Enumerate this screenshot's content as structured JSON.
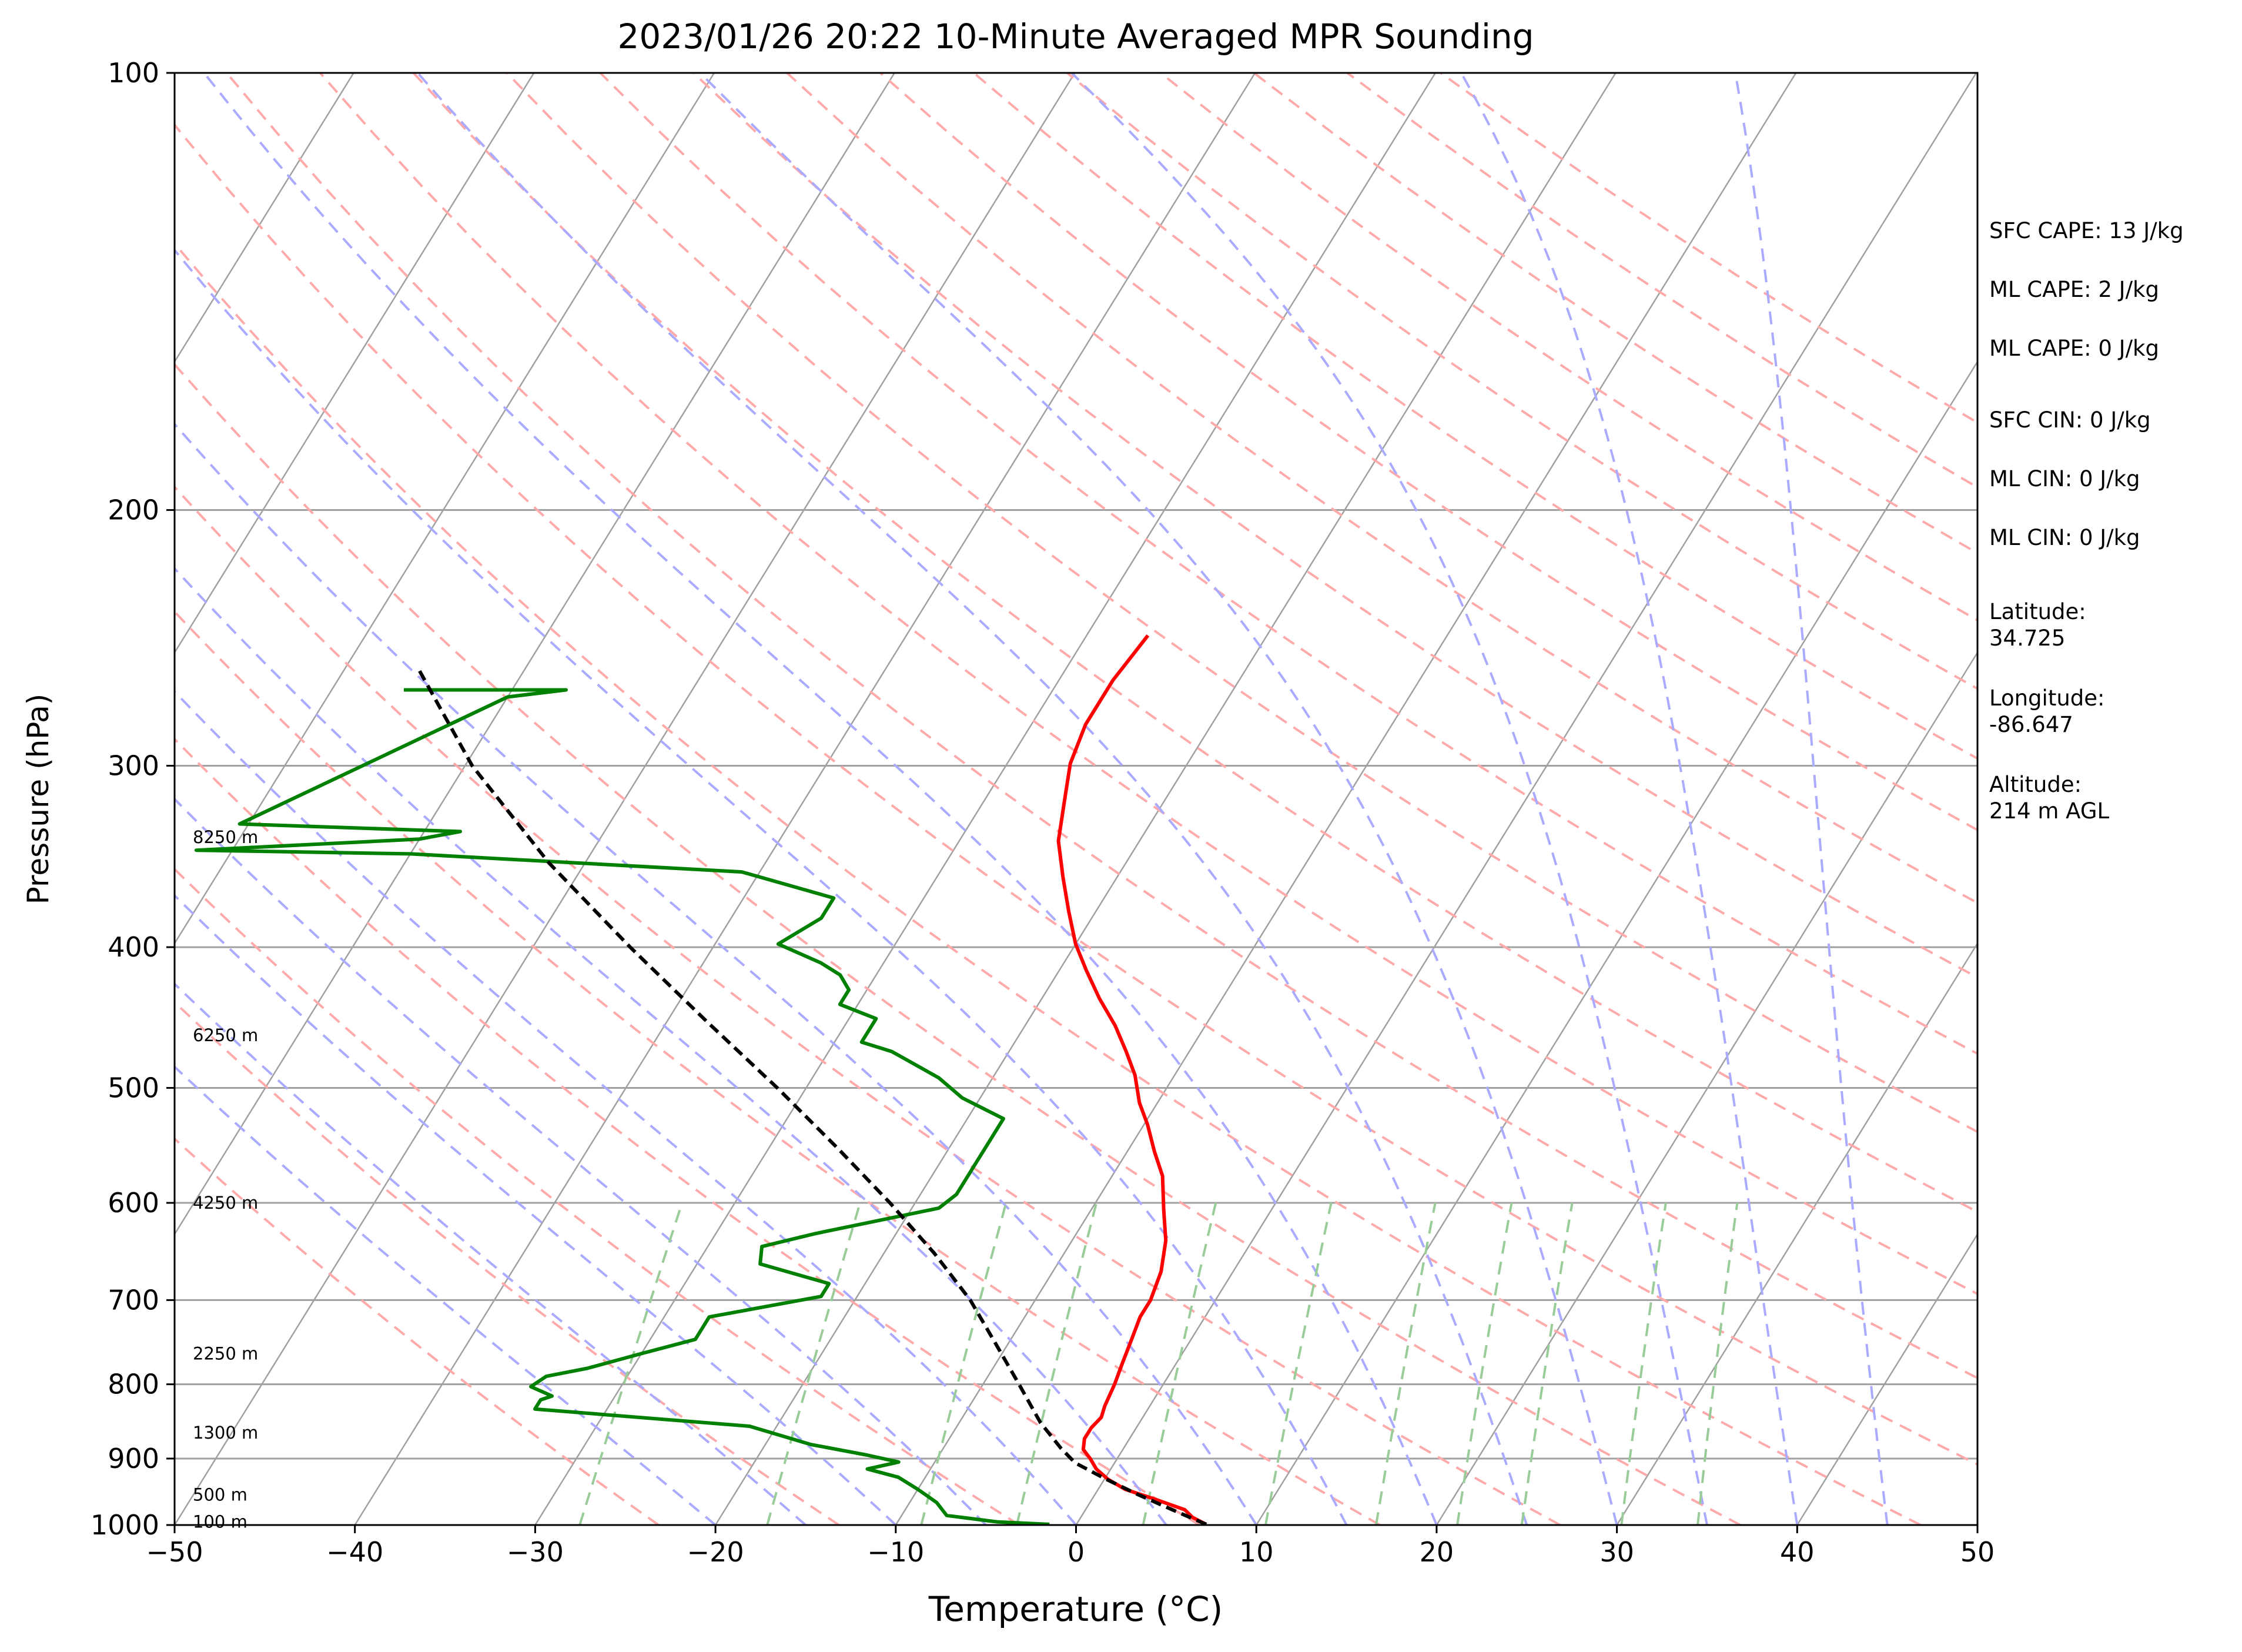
{
  "chart_data": {
    "type": "line",
    "title": "2023/01/26 20:22 10-Minute Averaged MPR Sounding",
    "xlabel": "Temperature (°C)",
    "ylabel": "Pressure (hPa)",
    "xlim": [
      -50,
      50
    ],
    "ylim": [
      1000,
      100
    ],
    "y_scale": "log",
    "skew": true,
    "grid": true,
    "x_ticks": [
      "−50",
      "−40",
      "−30",
      "−20",
      "−10",
      "0",
      "10",
      "20",
      "30",
      "40",
      "50"
    ],
    "x_tick_values": [
      -50,
      -40,
      -30,
      -20,
      -10,
      0,
      10,
      20,
      30,
      40,
      50
    ],
    "y_ticks": [
      "100",
      "200",
      "300",
      "400",
      "500",
      "600",
      "700",
      "800",
      "900",
      "1000"
    ],
    "y_tick_values": [
      100,
      200,
      300,
      400,
      500,
      600,
      700,
      800,
      900,
      1000
    ],
    "height_labels": [
      {
        "p": 995,
        "text": "100 m"
      },
      {
        "p": 953,
        "text": "500 m"
      },
      {
        "p": 864,
        "text": "1300 m"
      },
      {
        "p": 762,
        "text": "2250 m"
      },
      {
        "p": 600,
        "text": "4250 m"
      },
      {
        "p": 460,
        "text": "6250 m"
      },
      {
        "p": 336,
        "text": "8250 m"
      }
    ],
    "series": [
      {
        "key": "temperature",
        "color": "#ff0000",
        "points": [
          [
            7.2,
            999
          ],
          [
            6.2,
            988
          ],
          [
            5.5,
            976
          ],
          [
            3.5,
            960
          ],
          [
            1.5,
            945
          ],
          [
            0.2,
            930
          ],
          [
            -0.8,
            915
          ],
          [
            -1.5,
            900
          ],
          [
            -2.2,
            887
          ],
          [
            -2.5,
            872
          ],
          [
            -2.5,
            857
          ],
          [
            -2.3,
            843
          ],
          [
            -2.5,
            828
          ],
          [
            -2.7,
            800
          ],
          [
            -3.0,
            773
          ],
          [
            -3.3,
            745
          ],
          [
            -3.6,
            719
          ],
          [
            -3.6,
            700
          ],
          [
            -4.0,
            669
          ],
          [
            -4.8,
            637
          ],
          [
            -6.0,
            606
          ],
          [
            -7.2,
            575
          ],
          [
            -8.5,
            553
          ],
          [
            -9.8,
            530
          ],
          [
            -11.0,
            512
          ],
          [
            -12.2,
            490
          ],
          [
            -13.5,
            472
          ],
          [
            -15.0,
            453
          ],
          [
            -16.8,
            434
          ],
          [
            -18.5,
            415
          ],
          [
            -20.0,
            398
          ],
          [
            -21.5,
            378
          ],
          [
            -23.0,
            358
          ],
          [
            -24.5,
            338
          ],
          [
            -25.5,
            318
          ],
          [
            -26.5,
            299
          ],
          [
            -27.0,
            281
          ],
          [
            -27.0,
            262
          ],
          [
            -26.6,
            244
          ]
        ]
      },
      {
        "key": "dewpoint",
        "color": "#008000",
        "points": [
          [
            -1.5,
            999
          ],
          [
            -4.5,
            995
          ],
          [
            -7.5,
            985
          ],
          [
            -8.0,
            975
          ],
          [
            -8.5,
            965
          ],
          [
            -10.0,
            945
          ],
          [
            -11.5,
            927
          ],
          [
            -13.5,
            915
          ],
          [
            -12.0,
            905
          ],
          [
            -14.0,
            895
          ],
          [
            -17.5,
            880
          ],
          [
            -21.5,
            855
          ],
          [
            -34.0,
            832
          ],
          [
            -34.0,
            820
          ],
          [
            -33.5,
            815
          ],
          [
            -35.0,
            803
          ],
          [
            -34.5,
            790
          ],
          [
            -32.5,
            780
          ],
          [
            -30.0,
            762
          ],
          [
            -27.5,
            745
          ],
          [
            -27.5,
            719
          ],
          [
            -22.0,
            696
          ],
          [
            -22.0,
            682
          ],
          [
            -26.5,
            661
          ],
          [
            -27.0,
            643
          ],
          [
            -24.5,
            630
          ],
          [
            -18.5,
            605
          ],
          [
            -18.0,
            592
          ],
          [
            -18.0,
            568
          ],
          [
            -18.0,
            548
          ],
          [
            -18.0,
            525
          ],
          [
            -21.0,
            508
          ],
          [
            -23.0,
            492
          ],
          [
            -26.5,
            472
          ],
          [
            -28.5,
            465
          ],
          [
            -28.5,
            448
          ],
          [
            -31.0,
            438
          ],
          [
            -31.0,
            428
          ],
          [
            -32.0,
            418
          ],
          [
            -33.5,
            410
          ],
          [
            -36.5,
            398
          ],
          [
            -35.0,
            382
          ],
          [
            -35.0,
            370
          ],
          [
            -41.0,
            355
          ],
          [
            -60.0,
            345
          ],
          [
            -72.0,
            343
          ],
          [
            -60.0,
            337
          ],
          [
            -58.0,
            333
          ],
          [
            -70.5,
            329
          ],
          [
            -60.0,
            269
          ],
          [
            -57.0,
            266
          ],
          [
            -66.0,
            266
          ]
        ]
      },
      {
        "key": "parcel",
        "color": "#000000",
        "dashed": true,
        "points": [
          [
            7.2,
            999
          ],
          [
            4.8,
            976
          ],
          [
            2.3,
            952
          ],
          [
            0.0,
            929
          ],
          [
            -2.2,
            906
          ],
          [
            -3.5,
            885
          ],
          [
            -5.5,
            850
          ],
          [
            -8.0,
            800
          ],
          [
            -10.7,
            750
          ],
          [
            -13.6,
            700
          ],
          [
            -17.2,
            650
          ],
          [
            -21.4,
            600
          ],
          [
            -26.2,
            550
          ],
          [
            -31.6,
            500
          ],
          [
            -37.8,
            450
          ],
          [
            -44.6,
            400
          ],
          [
            -52.0,
            350
          ],
          [
            -59.6,
            300
          ],
          [
            -65.8,
            258
          ]
        ]
      }
    ]
  },
  "side_info": [
    {
      "key": "sfc_cape",
      "text": "SFC CAPE: 13 J/kg"
    },
    {
      "key": "ml_cape_1",
      "text": "ML CAPE: 2 J/kg"
    },
    {
      "key": "ml_cape_2",
      "text": "ML CAPE: 0 J/kg"
    },
    {
      "key": "sfc_cin",
      "text": "SFC CIN: 0 J/kg"
    },
    {
      "key": "ml_cin_1",
      "text": "ML CIN: 0 J/kg"
    },
    {
      "key": "ml_cin_2",
      "text": "ML CIN: 0 J/kg"
    },
    {
      "key": "lat_label",
      "text": "Latitude:"
    },
    {
      "key": "lat_value",
      "text": "34.725"
    },
    {
      "key": "lon_label",
      "text": "Longitude:"
    },
    {
      "key": "lon_value",
      "text": "-86.647"
    },
    {
      "key": "alt_label",
      "text": "Altitude:"
    },
    {
      "key": "alt_value",
      "text": "214 m AGL"
    }
  ],
  "colors": {
    "isotherm": "#a0a0a0",
    "dry_adiabat": "#ffaaaa",
    "moist_adiabat": "#aaaaff",
    "mixing_ratio": "#99cc99",
    "temperature": "#ff0000",
    "dewpoint": "#008000",
    "parcel": "#000000"
  }
}
